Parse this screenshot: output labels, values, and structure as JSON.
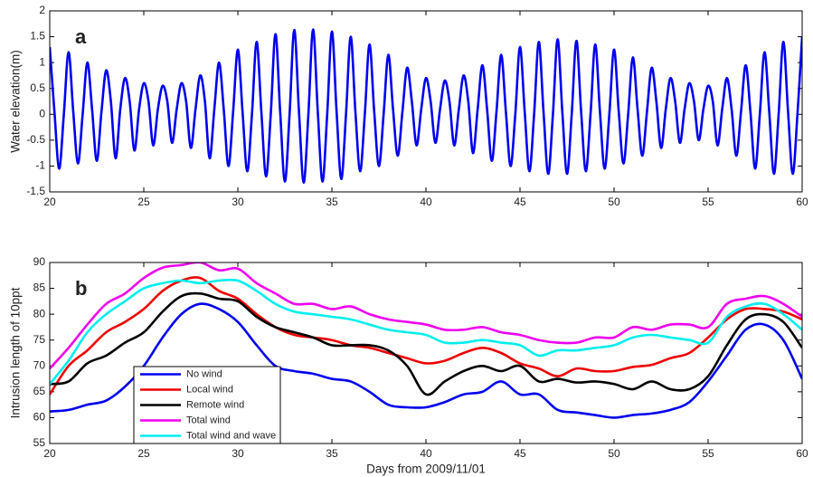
{
  "chart_data": [
    {
      "type": "line",
      "annotation": "a",
      "ylabel": "Water elevation(m)",
      "xlim": [
        20,
        60
      ],
      "xticks": [
        20,
        25,
        30,
        35,
        40,
        45,
        50,
        55,
        60
      ],
      "ylim": [
        -1.5,
        2
      ],
      "yticks": [
        -1.5,
        -1,
        -0.5,
        0,
        0.5,
        1,
        1.5,
        2
      ],
      "x": [
        20,
        20.25,
        20.5,
        20.75,
        21,
        21.25,
        21.5,
        21.75,
        22,
        22.25,
        22.5,
        22.75,
        23,
        23.25,
        23.5,
        23.75,
        24,
        24.25,
        24.5,
        24.75,
        25,
        25.25,
        25.5,
        25.75,
        26,
        26.25,
        26.5,
        26.75,
        27,
        27.25,
        27.5,
        27.75,
        28,
        28.25,
        28.5,
        28.75,
        29,
        29.25,
        29.5,
        29.75,
        30,
        30.25,
        30.5,
        30.75,
        31,
        31.25,
        31.5,
        31.75,
        32,
        32.25,
        32.5,
        32.75,
        33,
        33.25,
        33.5,
        33.75,
        34,
        34.25,
        34.5,
        34.75,
        35,
        35.25,
        35.5,
        35.75,
        36,
        36.25,
        36.5,
        36.75,
        37,
        37.25,
        37.5,
        37.75,
        38,
        38.25,
        38.5,
        38.75,
        39,
        39.25,
        39.5,
        39.75,
        40,
        40.25,
        40.5,
        40.75,
        41,
        41.25,
        41.5,
        41.75,
        42,
        42.25,
        42.5,
        42.75,
        43,
        43.25,
        43.5,
        43.75,
        44,
        44.25,
        44.5,
        44.75,
        45,
        45.25,
        45.5,
        45.75,
        46,
        46.25,
        46.5,
        46.75,
        47,
        47.25,
        47.5,
        47.75,
        48,
        48.25,
        48.5,
        48.75,
        49,
        49.25,
        49.5,
        49.75,
        50,
        50.25,
        50.5,
        50.75,
        51,
        51.25,
        51.5,
        51.75,
        52,
        52.25,
        52.5,
        52.75,
        53,
        53.25,
        53.5,
        53.75,
        54,
        54.25,
        54.5,
        54.75,
        55,
        55.25,
        55.5,
        55.75,
        56,
        56.25,
        56.5,
        56.75,
        57,
        57.25,
        57.5,
        57.75,
        58,
        58.25,
        58.5,
        58.75,
        59,
        59.25,
        59.5,
        59.75,
        60
      ],
      "series": [
        {
          "color": "#0000ee",
          "values": [
            1.3,
            0.05,
            -1.05,
            0.0,
            1.2,
            0.05,
            -0.95,
            0.0,
            1.0,
            0.1,
            -0.9,
            0.05,
            0.85,
            0.25,
            -0.85,
            0.1,
            0.7,
            0.25,
            -0.7,
            0.1,
            0.6,
            0.25,
            -0.6,
            0.1,
            0.55,
            0.25,
            -0.55,
            0.1,
            0.6,
            0.25,
            -0.65,
            0.1,
            0.75,
            0.25,
            -0.85,
            0.1,
            1.0,
            0.1,
            -1.0,
            0.05,
            1.25,
            0.05,
            -1.1,
            0.0,
            1.4,
            0.05,
            -1.2,
            0.0,
            1.55,
            0.05,
            -1.3,
            0.0,
            1.63,
            0.05,
            -1.32,
            0.0,
            1.64,
            0.05,
            -1.3,
            0.0,
            1.6,
            0.05,
            -1.25,
            0.0,
            1.5,
            0.05,
            -1.1,
            0.0,
            1.35,
            0.05,
            -1.0,
            0.0,
            1.15,
            0.1,
            -0.8,
            0.05,
            0.9,
            0.25,
            -0.6,
            0.1,
            0.7,
            0.25,
            -0.55,
            0.1,
            0.65,
            0.25,
            -0.6,
            0.1,
            0.75,
            0.25,
            -0.75,
            0.1,
            0.95,
            0.1,
            -0.9,
            0.05,
            1.15,
            0.05,
            -1.0,
            0.0,
            1.3,
            0.05,
            -1.1,
            0.0,
            1.4,
            0.05,
            -1.15,
            0.0,
            1.45,
            0.05,
            -1.15,
            0.0,
            1.42,
            0.05,
            -1.1,
            0.0,
            1.35,
            0.05,
            -1.05,
            0.0,
            1.25,
            0.05,
            -0.95,
            0.0,
            1.1,
            0.1,
            -0.8,
            0.05,
            0.9,
            0.25,
            -0.65,
            0.1,
            0.7,
            0.25,
            -0.55,
            0.1,
            0.6,
            0.25,
            -0.5,
            0.1,
            0.55,
            0.25,
            -0.6,
            0.1,
            0.7,
            0.1,
            -0.8,
            0.05,
            0.95,
            0.05,
            -1.05,
            0.0,
            1.2,
            0.05,
            -1.15,
            0.0,
            1.4,
            0.05,
            -1.15,
            0.0,
            1.5
          ]
        }
      ]
    },
    {
      "type": "line",
      "annotation": "b",
      "ylabel": "Intrusion length of 10ppt",
      "xlabel": "Days from 2009/11/01",
      "xlim": [
        20,
        60
      ],
      "xticks": [
        20,
        25,
        30,
        35,
        40,
        45,
        50,
        55,
        60
      ],
      "ylim": [
        55,
        90
      ],
      "yticks": [
        55,
        60,
        65,
        70,
        75,
        80,
        85,
        90
      ],
      "legend": "lower left",
      "x": [
        20,
        21,
        22,
        23,
        24,
        25,
        26,
        27,
        28,
        29,
        30,
        31,
        32,
        33,
        34,
        35,
        36,
        37,
        38,
        39,
        40,
        41,
        42,
        43,
        44,
        45,
        46,
        47,
        48,
        49,
        50,
        51,
        52,
        53,
        54,
        55,
        56,
        57,
        58,
        59,
        60
      ],
      "series": [
        {
          "name": "No wind",
          "color": "#0000ee",
          "values": [
            61.2,
            61.5,
            62.5,
            63.3,
            66,
            70,
            75.5,
            80,
            82,
            81,
            78.5,
            74,
            70,
            69,
            68.5,
            67.5,
            67,
            65,
            62.5,
            62,
            62,
            63,
            64.5,
            65,
            67,
            64.5,
            64.5,
            61.5,
            61,
            60.5,
            60,
            60.5,
            60.8,
            61.5,
            63,
            67,
            72,
            77,
            78,
            75,
            67.5
          ]
        },
        {
          "name": "Local wind",
          "color": "#ee0000",
          "values": [
            64.5,
            70,
            73,
            76.5,
            78.5,
            81,
            84.5,
            86.5,
            87,
            84.5,
            83,
            80,
            77.5,
            76,
            75.5,
            75,
            74,
            73.5,
            72.5,
            71.5,
            70.5,
            71,
            72.5,
            73.5,
            72.5,
            70.5,
            69.5,
            68,
            69.5,
            69,
            69,
            69.8,
            70.2,
            71.5,
            72.5,
            75.5,
            79,
            81,
            81,
            80.5,
            79
          ]
        },
        {
          "name": "Remote wind",
          "color": "#000000",
          "values": [
            66.5,
            67,
            70.5,
            72,
            74.5,
            76.5,
            80.5,
            83.5,
            84,
            83,
            82.5,
            79.5,
            77.5,
            76.5,
            75.5,
            74,
            74,
            74,
            73,
            70,
            64.5,
            67,
            69,
            70,
            69,
            70,
            67,
            67.5,
            66.8,
            67,
            66.5,
            65.5,
            67,
            65.5,
            65.5,
            68,
            74,
            79,
            80,
            78.5,
            73.5
          ]
        },
        {
          "name": "Total wind",
          "color": "#ee00ee",
          "values": [
            69.5,
            73.5,
            78,
            82,
            84,
            87,
            89,
            89.5,
            90,
            88.5,
            88.8,
            86,
            84,
            82,
            82,
            81,
            81.5,
            80,
            79,
            78.5,
            78,
            77,
            77,
            77.5,
            76.5,
            76,
            75,
            74.5,
            74.5,
            75.5,
            75.5,
            77.5,
            77,
            78,
            78,
            77.5,
            82,
            83,
            83.5,
            82,
            79.5
          ]
        },
        {
          "name": "Total wind and wave",
          "color": "#00eeee",
          "values": [
            66.5,
            71,
            76.5,
            80,
            82.5,
            85,
            86,
            86.5,
            86,
            86.5,
            86.5,
            84.5,
            82,
            80.5,
            80,
            79.5,
            79,
            78,
            77,
            76.5,
            76,
            74.5,
            74.5,
            75,
            74.5,
            74,
            72,
            73,
            73,
            73.5,
            74,
            75.5,
            76,
            75.5,
            75,
            74.5,
            79.5,
            81.5,
            82,
            80,
            77
          ]
        }
      ]
    }
  ]
}
